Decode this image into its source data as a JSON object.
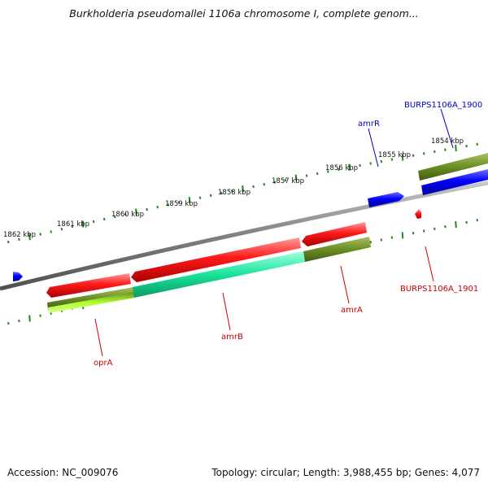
{
  "header": {
    "title": "Burkholderia pseudomallei 1106a chromosome I, complete genom..."
  },
  "footer": {
    "accession": "Accession: NC_009076",
    "topology": "Topology: circular; Length: 3,988,455 bp; Genes: 4,077"
  },
  "colors": {
    "forward_gene": "#ff0000",
    "reverse_gene": "#0000ff",
    "forward_label": "#cc0000",
    "reverse_label": "#0000bb",
    "backbone": "#808080",
    "ticks": "#1f8a1f",
    "cds_olive": "#6b8e23",
    "cds_lime": "#adff2f",
    "cds_aqua": "#1fe0a0"
  },
  "scale": {
    "tick_labels": [
      "1854 kbp",
      "1855 kbp",
      "1856 kbp",
      "1857 kbp",
      "1858 kbp",
      "1859 kbp",
      "1860 kbp",
      "1861 kbp",
      "1862 kbp"
    ]
  },
  "genes": {
    "labels": [
      {
        "name": "BURPS1106A_1900",
        "strand": "reverse"
      },
      {
        "name": "amrR",
        "strand": "reverse"
      },
      {
        "name": "BURPS1106A_1901",
        "strand": "forward"
      },
      {
        "name": "amrA",
        "strand": "forward"
      },
      {
        "name": "amrB",
        "strand": "forward"
      },
      {
        "name": "oprA",
        "strand": "forward"
      }
    ]
  }
}
